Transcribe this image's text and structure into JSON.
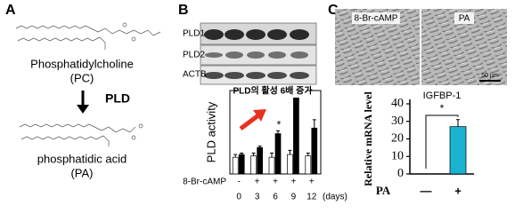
{
  "panels": {
    "A": {
      "label": "A",
      "substrate": "Phosphatidylcholine",
      "substrate_abbr": "(PC)",
      "enzyme": "PLD",
      "product": "phosphatidic acid",
      "product_abbr": "(PA)"
    },
    "B": {
      "label": "B",
      "blot_rows": [
        "PLD1",
        "PLD2",
        "ACTB"
      ]
    },
    "C": {
      "label": "C",
      "image_labels": [
        "8-Br-cAMP",
        "PA"
      ],
      "scale_bar": "50 μm"
    }
  },
  "chart_data": [
    {
      "type": "bar",
      "y_label": "PLD activity",
      "annotation": "PLD의 활성 6배 증가",
      "categories": [
        "0",
        "3",
        "6",
        "9",
        "12"
      ],
      "x_unit": "(days)",
      "treatment_label": "8-Br-cAMP",
      "treatment_signs": [
        "-",
        "+",
        "+",
        "+",
        "+"
      ],
      "series": [
        {
          "color": "#ffffff",
          "values": [
            12,
            13,
            12,
            14,
            13
          ],
          "errors": [
            2,
            2,
            3,
            3,
            2
          ]
        },
        {
          "color": "#000000",
          "values": [
            14,
            19,
            29,
            55,
            33
          ],
          "errors": [
            1,
            1,
            2,
            6,
            6
          ]
        }
      ],
      "significance_labels": [
        null,
        null,
        "*",
        null,
        null
      ],
      "ylim": [
        0,
        60
      ]
    },
    {
      "type": "bar",
      "title": "IGFBP-1",
      "y_label": "Relative mRNA level",
      "x_label": "PA",
      "categories": [
        "—",
        "+"
      ],
      "series": [
        {
          "color": "#1ab3d1",
          "values": [
            0,
            27
          ],
          "errors": [
            0,
            4
          ]
        }
      ],
      "significance_labels": [
        null,
        "*"
      ],
      "ylim": [
        0,
        40
      ],
      "yticks": [
        0,
        10,
        20,
        30,
        40
      ]
    }
  ]
}
